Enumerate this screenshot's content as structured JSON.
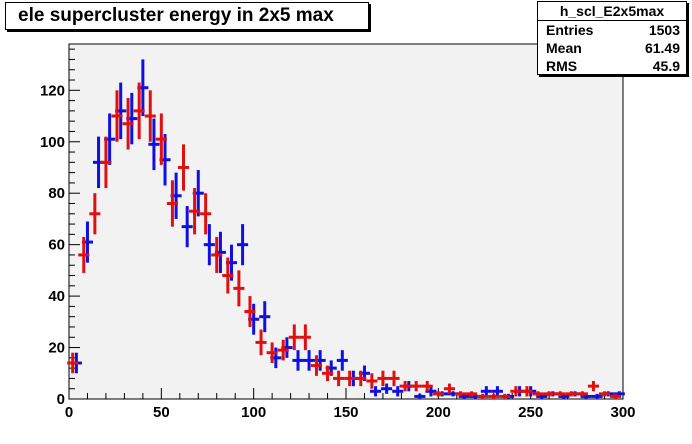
{
  "chart_data": {
    "type": "histogram",
    "title": "ele supercluster energy in 2x5 max",
    "xlabel": "",
    "ylabel": "",
    "xlim": [
      0,
      300
    ],
    "ylim": [
      0,
      138
    ],
    "grid": false,
    "x_ticks": [
      0,
      50,
      100,
      150,
      200,
      250,
      300
    ],
    "y_ticks": [
      0,
      20,
      40,
      60,
      80,
      100,
      120
    ],
    "bin_width": 6,
    "x": [
      3,
      9,
      15,
      21,
      27,
      33,
      39,
      45,
      51,
      57,
      63,
      69,
      75,
      81,
      87,
      93,
      99,
      105,
      111,
      117,
      123,
      129,
      135,
      141,
      147,
      153,
      159,
      165,
      171,
      177,
      183,
      189,
      195,
      201,
      207,
      213,
      219,
      225,
      231,
      237,
      243,
      249,
      255,
      261,
      267,
      273,
      279,
      285,
      291,
      297
    ],
    "stats": {
      "name": "h_scl_E2x5max",
      "entries_label": "Entries",
      "entries": "1503",
      "mean_label": "Mean",
      "mean": "61.49",
      "rms_label": "RMS",
      "rms": "45.9"
    },
    "series": [
      {
        "color": "#1010e0",
        "x_offset": 1,
        "values": [
          14,
          61,
          92,
          101,
          112,
          109,
          121,
          99,
          93,
          79,
          67,
          80,
          60,
          57,
          53,
          60,
          31,
          32,
          16,
          20,
          15,
          15,
          15,
          12,
          15,
          8,
          10,
          3,
          4,
          3,
          5,
          1,
          3,
          2,
          2,
          1,
          1,
          3,
          3,
          1,
          3,
          3,
          1,
          2,
          1,
          2,
          1,
          1,
          2,
          2
        ],
        "errors": [
          4,
          8,
          10,
          10,
          11,
          10,
          11,
          10,
          10,
          9,
          8,
          9,
          8,
          8,
          7,
          8,
          6,
          6,
          4,
          4,
          4,
          4,
          4,
          3,
          4,
          3,
          3,
          2,
          2,
          2,
          2,
          1,
          2,
          1,
          1,
          1,
          1,
          2,
          2,
          1,
          2,
          2,
          1,
          1,
          1,
          1,
          1,
          1,
          1,
          1
        ]
      },
      {
        "color": "#e01010",
        "x_offset": -1,
        "values": [
          14,
          56,
          72,
          92,
          110,
          107,
          112,
          110,
          101,
          76,
          90,
          73,
          72,
          56,
          48,
          43,
          34,
          22,
          18,
          19,
          24,
          24,
          13,
          10,
          8,
          8,
          8,
          7,
          8,
          8,
          5,
          5,
          5,
          2,
          4,
          2,
          2,
          1,
          1,
          1,
          3,
          3,
          2,
          2,
          2,
          2,
          2,
          5,
          2,
          1
        ],
        "errors": [
          4,
          7,
          8,
          10,
          10,
          10,
          11,
          10,
          10,
          9,
          9,
          9,
          8,
          7,
          7,
          7,
          6,
          5,
          4,
          4,
          5,
          5,
          4,
          3,
          3,
          3,
          3,
          3,
          3,
          3,
          2,
          2,
          2,
          1,
          2,
          1,
          1,
          1,
          1,
          1,
          2,
          2,
          1,
          1,
          1,
          1,
          1,
          2,
          1,
          1
        ]
      }
    ]
  }
}
